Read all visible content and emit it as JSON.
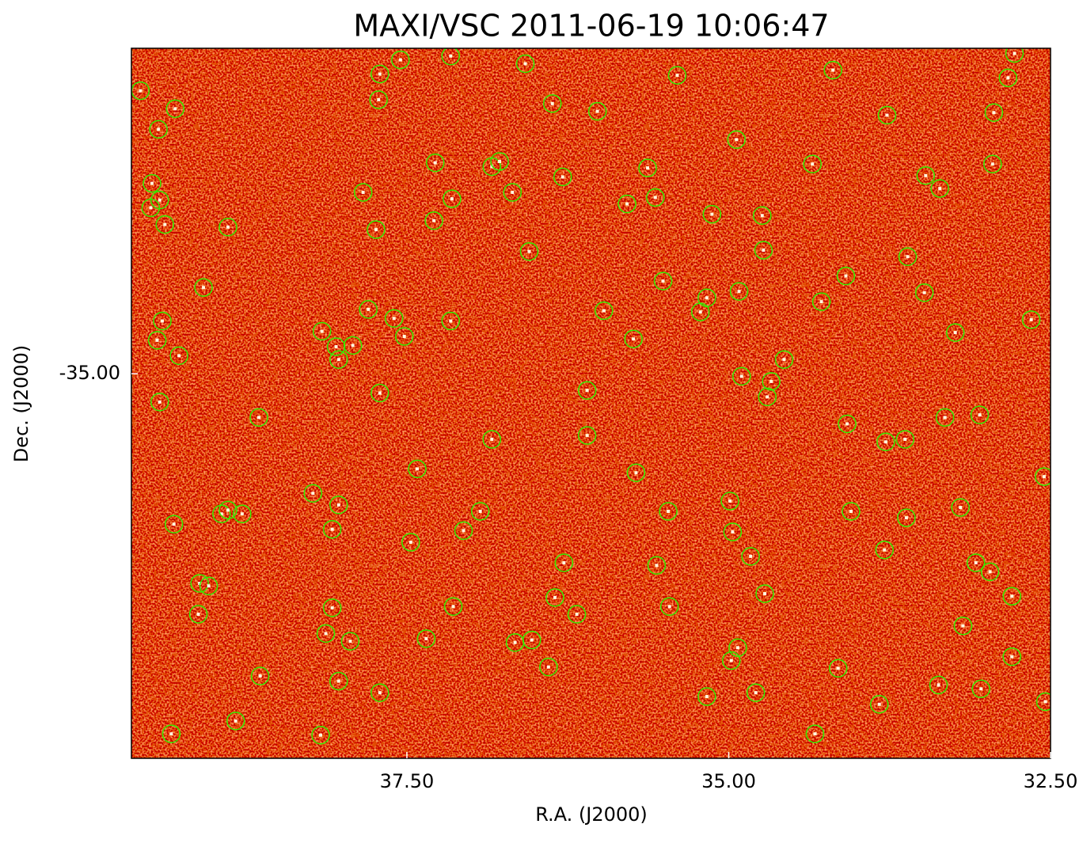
{
  "chart_data": {
    "type": "scatter",
    "title": "MAXI/VSC 2011-06-19 10:06:47",
    "xlabel": "R.A. (J2000)",
    "ylabel": "Dec. (J2000)",
    "color": "#33ee00",
    "xlim": [
      39.64,
      32.5
    ],
    "ylim": [
      -37.99,
      -32.47
    ],
    "xticks": [
      {
        "value": 37.5,
        "label": "37.50"
      },
      {
        "value": 35,
        "label": "35.00"
      },
      {
        "value": 32.5,
        "label": "32.50"
      }
    ],
    "yticks": [
      {
        "value": -35,
        "label": "-35.00"
      }
    ],
    "x": [
      39.57,
      39.3,
      39.43,
      39.48,
      39.42,
      39.49,
      39.38,
      38.89,
      39.08,
      39.4,
      39.44,
      39.27,
      39.42,
      38.65,
      39.31,
      38.94,
      38.89,
      38.78,
      39.11,
      39.04,
      39.12,
      38.64,
      39.33,
      38.83,
      38.17,
      38.03,
      38.13,
      38.08,
      37.94,
      37.71,
      38.23,
      38.03,
      38.08,
      38.16,
      38.05,
      38.03,
      37.92,
      37.8,
      37.6,
      37.52,
      37.71,
      37.74,
      37.84,
      37.72,
      37.71,
      37.55,
      37.16,
      36.58,
      37.28,
      37.15,
      37.29,
      36.84,
      36.78,
      36.68,
      36.55,
      37.16,
      37.42,
      36.84,
      37.47,
      37.06,
      36.93,
      37.14,
      37.35,
      36.66,
      36.53,
      36.4,
      36.35,
      36.18,
      36.28,
      36.1,
      36.1,
      35.97,
      35.74,
      36.37,
      36.02,
      36.29,
      35.79,
      35.63,
      35.57,
      35.4,
      35.51,
      34.94,
      35.13,
      34.74,
      34.73,
      34.92,
      35.17,
      35.22,
      34.9,
      34.67,
      34.7,
      34.57,
      35.72,
      35.47,
      35.56,
      35.46,
      34.99,
      34.97,
      34.83,
      34.72,
      34.93,
      34.98,
      35.17,
      34.79,
      34.33,
      34.15,
      33.83,
      33.37,
      33.04,
      32.8,
      32.54,
      33.18,
      32.8,
      33.08,
      32.97,
      33.79,
      33.62,
      33.2,
      34.05,
      32.55,
      34.08,
      33.78,
      33.63,
      33.32,
      33.05,
      33.24,
      32.65,
      33.48,
      33.61,
      34.28,
      34.09,
      34.35,
      33.47,
      33.36,
      32.95,
      32.94,
      33.77,
      34.19,
      32.83,
      32.78
    ],
    "y": [
      -32.8,
      -32.94,
      -33.1,
      -33.52,
      -33.65,
      -33.71,
      -33.84,
      -33.86,
      -34.33,
      -34.59,
      -34.74,
      -34.86,
      -35.22,
      -35.34,
      -36.17,
      -36.09,
      -36.06,
      -36.09,
      -36.63,
      -36.65,
      -36.87,
      -37.35,
      -37.8,
      -37.7,
      -37.81,
      -37.39,
      -37.02,
      -36.82,
      -37.08,
      -37.48,
      -35.93,
      -36.02,
      -36.21,
      -34.67,
      -34.79,
      -34.89,
      -34.78,
      -34.5,
      -34.57,
      -34.71,
      -35.15,
      -33.88,
      -33.59,
      -32.87,
      -32.67,
      -32.56,
      -32.53,
      -32.59,
      -33.36,
      -33.64,
      -33.81,
      -33.39,
      -33.35,
      -33.59,
      -34.05,
      -34.59,
      -35.74,
      -35.51,
      -36.31,
      -36.22,
      -36.07,
      -36.81,
      -37.06,
      -37.09,
      -37.07,
      -37.28,
      -36.74,
      -36.87,
      -36.47,
      -35.48,
      -35.13,
      -34.51,
      -34.73,
      -32.9,
      -32.96,
      -33.47,
      -33.68,
      -33.4,
      -33.63,
      -32.68,
      -34.28,
      -33.18,
      -33.76,
      -33.77,
      -34.04,
      -34.36,
      -34.41,
      -34.52,
      -35.02,
      -35.06,
      -35.18,
      -34.89,
      -35.77,
      -36.07,
      -36.49,
      -36.81,
      -35.99,
      -36.23,
      -36.42,
      -36.71,
      -37.13,
      -37.23,
      -37.51,
      -37.48,
      -37.8,
      -37.29,
      -37.57,
      -37.42,
      -37.45,
      -37.2,
      -37.55,
      -36.96,
      -36.73,
      -36.47,
      -36.54,
      -36.37,
      -36.12,
      -36.04,
      -36.07,
      -35.8,
      -35.39,
      -35.53,
      -35.51,
      -35.34,
      -35.32,
      -34.68,
      -34.58,
      -34.37,
      -34.09,
      -34.44,
      -34.24,
      -33.37,
      -33.46,
      -33.56,
      -33.37,
      -32.97,
      -32.99,
      -32.64,
      -32.7,
      -32.51
    ]
  }
}
